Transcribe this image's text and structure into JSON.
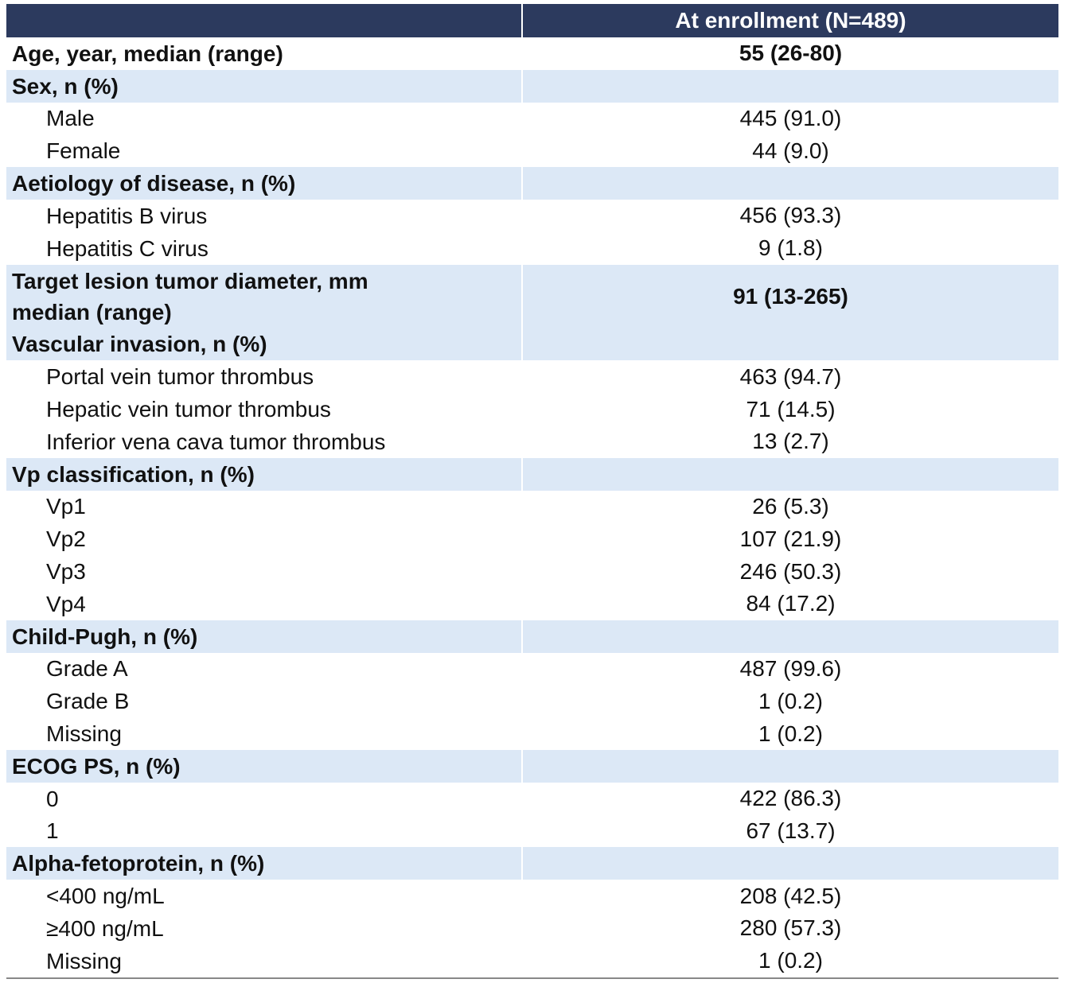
{
  "table": {
    "header": "At enrollment (N=489)",
    "sections": [
      {
        "title": "Age, year, median (range)",
        "value": "55 (26-80)"
      },
      {
        "title": "Sex, n (%)",
        "items": [
          [
            "Male",
            "445 (91.0)"
          ],
          [
            "Female",
            "44 (9.0)"
          ]
        ]
      },
      {
        "title": "Aetiology of disease, n (%)",
        "items": [
          [
            "Hepatitis B virus",
            "456 (93.3)"
          ],
          [
            "Hepatitis C virus",
            "9 (1.8)"
          ]
        ]
      },
      {
        "title": "Target lesion tumor diameter, mm\nmedian (range)",
        "value": "91 (13-265)"
      },
      {
        "title": "Vascular invasion, n (%)",
        "items": [
          [
            "Portal vein tumor thrombus",
            "463 (94.7)"
          ],
          [
            "Hepatic vein tumor thrombus",
            "71 (14.5)"
          ],
          [
            "Inferior vena cava tumor thrombus",
            "13 (2.7)"
          ]
        ]
      },
      {
        "title": "Vp classification, n (%)",
        "items": [
          [
            "Vp1",
            "26 (5.3)"
          ],
          [
            "Vp2",
            "107 (21.9)"
          ],
          [
            "Vp3",
            "246 (50.3)"
          ],
          [
            "Vp4",
            "84 (17.2)"
          ]
        ]
      },
      {
        "title": "Child-Pugh, n (%)",
        "items": [
          [
            "Grade A",
            "487 (99.6)"
          ],
          [
            "Grade B",
            "1 (0.2)"
          ],
          [
            "Missing",
            "1 (0.2)"
          ]
        ]
      },
      {
        "title": "ECOG PS, n (%)",
        "items": [
          [
            "0",
            "422 (86.3)"
          ],
          [
            "1",
            "67 (13.7)"
          ]
        ]
      },
      {
        "title": "Alpha-fetoprotein, n (%)",
        "items": [
          [
            "<400 ng/mL",
            "208 (42.5)"
          ],
          [
            "≥400 ng/mL",
            "280 (57.3)"
          ],
          [
            "Missing",
            "1 (0.2)"
          ]
        ]
      }
    ]
  }
}
